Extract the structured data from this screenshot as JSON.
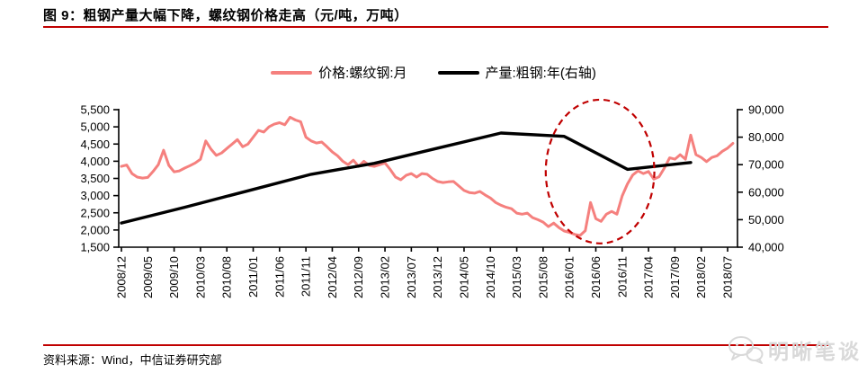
{
  "figure": {
    "title": "图 9：粗钢产量大幅下降，螺纹钢价格走高（元/吨，万吨）",
    "source_label": "资料来源：Wind，中信证券研究部",
    "watermark_text": "明晰笔谈",
    "accent_color": "#c00000"
  },
  "legend": [
    {
      "label": "价格:螺纹钢:月",
      "color": "#f5807e"
    },
    {
      "label": "产量:粗钢:年(右轴)",
      "color": "#000000"
    }
  ],
  "chart_data": {
    "type": "line",
    "title": "图 9：粗钢产量大幅下降，螺纹钢价格走高（元/吨，万吨）",
    "months_start": "2008/12",
    "months_end": "2018/08",
    "x_tick_month_step": 5,
    "x_tick_labels": [
      "2008/12",
      "2009/05",
      "2009/10",
      "2010/03",
      "2010/08",
      "2011/01",
      "2011/06",
      "2011/11",
      "2012/04",
      "2012/09",
      "2013/02",
      "2013/07",
      "2013/12",
      "2014/05",
      "2014/10",
      "2015/03",
      "2015/08",
      "2016/01",
      "2016/06",
      "2016/11",
      "2017/04",
      "2017/09",
      "2018/02",
      "2018/07"
    ],
    "left_axis": {
      "min": 1500,
      "max": 5500,
      "step": 500,
      "ticks": [
        "1,500",
        "2,000",
        "2,500",
        "3,000",
        "3,500",
        "4,000",
        "4,500",
        "5,000",
        "5,500"
      ]
    },
    "right_axis": {
      "min": 40000,
      "max": 90000,
      "step": 10000,
      "ticks": [
        "40,000",
        "50,000",
        "60,000",
        "70,000",
        "80,000",
        "90,000"
      ]
    },
    "grid": false,
    "legend_position": "top-center",
    "series": [
      {
        "name": "价格:螺纹钢:月",
        "axis": "left",
        "color": "#f5807e",
        "width": 3,
        "month_index_start": 0,
        "values": [
          3850,
          3890,
          3640,
          3540,
          3510,
          3530,
          3700,
          3900,
          4320,
          3880,
          3690,
          3720,
          3800,
          3870,
          3950,
          4060,
          4590,
          4350,
          4170,
          4240,
          4370,
          4500,
          4630,
          4420,
          4500,
          4700,
          4900,
          4850,
          5000,
          5080,
          5120,
          5060,
          5280,
          5200,
          5150,
          4700,
          4590,
          4530,
          4560,
          4420,
          4270,
          4160,
          4000,
          3900,
          4030,
          3850,
          4000,
          3880,
          3850,
          3900,
          3950,
          3760,
          3540,
          3460,
          3590,
          3640,
          3540,
          3640,
          3620,
          3500,
          3410,
          3380,
          3400,
          3410,
          3280,
          3150,
          3090,
          3070,
          3120,
          3020,
          2930,
          2800,
          2720,
          2660,
          2620,
          2490,
          2460,
          2490,
          2360,
          2300,
          2230,
          2100,
          2200,
          2070,
          1970,
          1930,
          1870,
          1840,
          1980,
          2800,
          2330,
          2250,
          2460,
          2540,
          2460,
          2990,
          3340,
          3600,
          3720,
          3640,
          3700,
          3480,
          3550,
          3800,
          4100,
          4060,
          4190,
          4060,
          4760,
          4190,
          4110,
          3990,
          4110,
          4160,
          4290,
          4380,
          4520
        ]
      },
      {
        "name": "产量:粗钢:年(右轴)",
        "axis": "right",
        "color": "#000000",
        "width": 3.4,
        "points": [
          [
            0,
            48800
          ],
          [
            12,
            54500
          ],
          [
            24,
            60500
          ],
          [
            36,
            66500
          ],
          [
            48,
            70500
          ],
          [
            60,
            76000
          ],
          [
            72,
            81500
          ],
          [
            84,
            80300
          ],
          [
            96,
            68300
          ],
          [
            108,
            70800
          ]
        ]
      }
    ],
    "annotation_ellipse": {
      "center_month": 90.8,
      "center_value_left": 3700,
      "radius_months": 10.3,
      "radius_value_left": 2090,
      "color": "#c00000",
      "dash": "7 5"
    }
  }
}
